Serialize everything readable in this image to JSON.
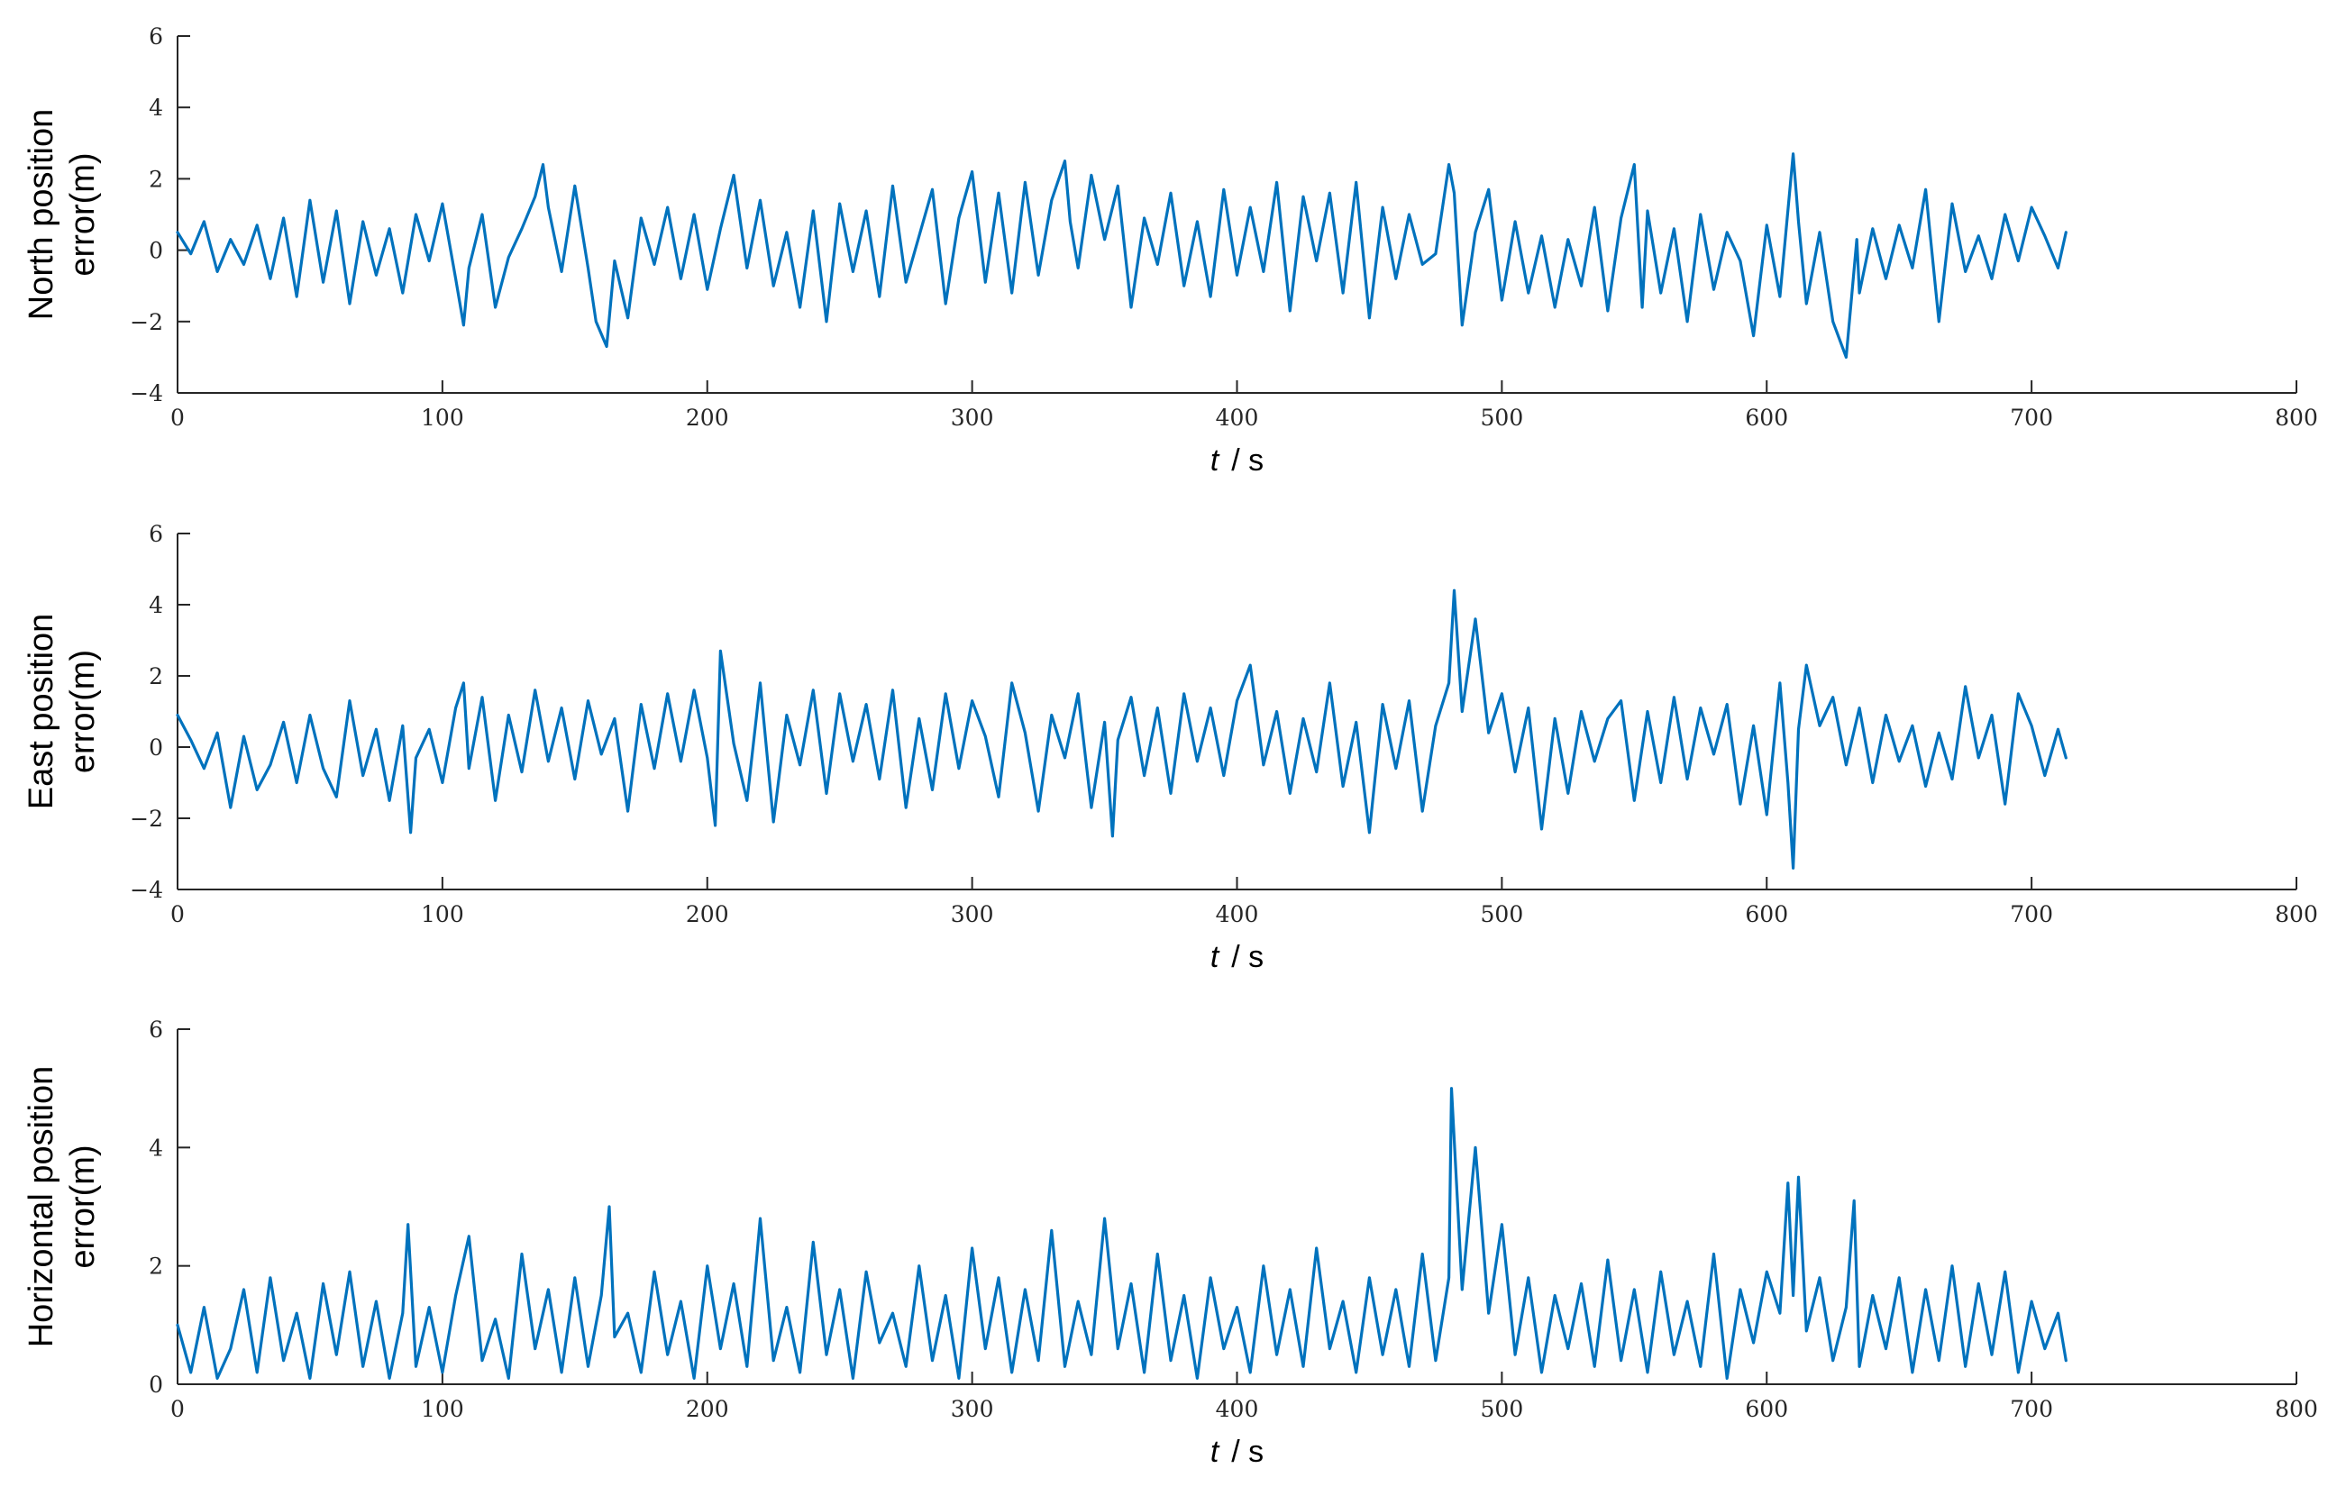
{
  "chart_data": [
    {
      "type": "line",
      "ylabel": [
        "North position",
        "error(m)"
      ],
      "xlabel": {
        "var": "t",
        "unit": "/ s"
      },
      "xlim": [
        0,
        800
      ],
      "ylim": [
        -4,
        6
      ],
      "xticks": [
        0,
        100,
        200,
        300,
        400,
        500,
        600,
        700,
        800
      ],
      "yticks": [
        -4,
        -2,
        0,
        2,
        4,
        6
      ],
      "grid": false,
      "color": "#0072BD",
      "series": [
        {
          "x": [
            0,
            5,
            10,
            15,
            20,
            25,
            30,
            35,
            40,
            45,
            50,
            55,
            60,
            65,
            70,
            75,
            80,
            85,
            90,
            95,
            100,
            105,
            108,
            110,
            115,
            120,
            125,
            130,
            135,
            138,
            140,
            145,
            150,
            155,
            158,
            162,
            165,
            170,
            175,
            180,
            185,
            190,
            195,
            200,
            205,
            210,
            215,
            220,
            225,
            230,
            235,
            240,
            245,
            250,
            255,
            260,
            265,
            270,
            275,
            280,
            285,
            290,
            295,
            300,
            305,
            310,
            315,
            320,
            325,
            330,
            335,
            337,
            340,
            345,
            350,
            355,
            360,
            365,
            370,
            375,
            380,
            385,
            390,
            395,
            400,
            405,
            410,
            415,
            420,
            425,
            430,
            435,
            440,
            445,
            450,
            455,
            460,
            465,
            470,
            475,
            480,
            482,
            485,
            490,
            495,
            500,
            505,
            510,
            515,
            520,
            525,
            530,
            535,
            540,
            545,
            550,
            553,
            555,
            560,
            565,
            570,
            575,
            580,
            585,
            590,
            595,
            600,
            605,
            610,
            612,
            615,
            620,
            625,
            630,
            634,
            635,
            640,
            645,
            650,
            655,
            660,
            665,
            670,
            675,
            680,
            685,
            690,
            695,
            700,
            705,
            710,
            713
          ],
          "y": [
            0.5,
            -0.1,
            0.8,
            -0.6,
            0.3,
            -0.4,
            0.7,
            -0.8,
            0.9,
            -1.3,
            1.4,
            -0.9,
            1.1,
            -1.5,
            0.8,
            -0.7,
            0.6,
            -1.2,
            1.0,
            -0.3,
            1.3,
            -0.8,
            -2.1,
            -0.5,
            1.0,
            -1.6,
            -0.2,
            0.6,
            1.5,
            2.4,
            1.2,
            -0.6,
            1.8,
            -0.5,
            -2.0,
            -2.7,
            -0.3,
            -1.9,
            0.9,
            -0.4,
            1.2,
            -0.8,
            1.0,
            -1.1,
            0.6,
            2.1,
            -0.5,
            1.4,
            -1.0,
            0.5,
            -1.6,
            1.1,
            -2.0,
            1.3,
            -0.6,
            1.1,
            -1.3,
            1.8,
            -0.9,
            0.4,
            1.7,
            -1.5,
            0.9,
            2.2,
            -0.9,
            1.6,
            -1.2,
            1.9,
            -0.7,
            1.4,
            2.5,
            0.8,
            -0.5,
            2.1,
            0.3,
            1.8,
            -1.6,
            0.9,
            -0.4,
            1.6,
            -1.0,
            0.8,
            -1.3,
            1.7,
            -0.7,
            1.2,
            -0.6,
            1.9,
            -1.7,
            1.5,
            -0.3,
            1.6,
            -1.2,
            1.9,
            -1.9,
            1.2,
            -0.8,
            1.0,
            -0.4,
            -0.1,
            2.4,
            1.6,
            -2.1,
            0.5,
            1.7,
            -1.4,
            0.8,
            -1.2,
            0.4,
            -1.6,
            0.3,
            -1.0,
            1.2,
            -1.7,
            0.9,
            2.4,
            -1.6,
            1.1,
            -1.2,
            0.6,
            -2.0,
            1.0,
            -1.1,
            0.5,
            -0.3,
            -2.4,
            0.7,
            -1.3,
            2.7,
            0.8,
            -1.5,
            0.5,
            -2.0,
            -3.0,
            0.3,
            -1.2,
            0.6,
            -0.8,
            0.7,
            -0.5,
            1.7,
            -2.0,
            1.3,
            -0.6,
            0.4,
            -0.8,
            1.0,
            -0.3,
            1.2,
            0.4,
            -0.5,
            0.5
          ]
        }
      ]
    },
    {
      "type": "line",
      "ylabel": [
        "East position",
        "error(m)"
      ],
      "xlabel": {
        "var": "t",
        "unit": "/ s"
      },
      "xlim": [
        0,
        800
      ],
      "ylim": [
        -4,
        6
      ],
      "xticks": [
        0,
        100,
        200,
        300,
        400,
        500,
        600,
        700,
        800
      ],
      "yticks": [
        -4,
        -2,
        0,
        2,
        4,
        6
      ],
      "grid": false,
      "color": "#0072BD",
      "series": [
        {
          "x": [
            0,
            5,
            10,
            15,
            20,
            25,
            30,
            35,
            40,
            45,
            50,
            55,
            60,
            65,
            70,
            75,
            80,
            85,
            88,
            90,
            95,
            100,
            105,
            108,
            110,
            115,
            120,
            125,
            130,
            135,
            140,
            145,
            150,
            155,
            160,
            165,
            170,
            175,
            180,
            185,
            190,
            195,
            200,
            203,
            205,
            210,
            215,
            220,
            225,
            230,
            235,
            240,
            245,
            250,
            255,
            260,
            265,
            270,
            275,
            280,
            285,
            290,
            295,
            300,
            305,
            310,
            315,
            320,
            325,
            330,
            335,
            340,
            345,
            350,
            353,
            355,
            360,
            365,
            370,
            375,
            380,
            385,
            390,
            395,
            400,
            405,
            410,
            415,
            420,
            425,
            430,
            435,
            440,
            445,
            450,
            455,
            460,
            465,
            470,
            475,
            480,
            482,
            485,
            490,
            495,
            500,
            505,
            510,
            515,
            520,
            525,
            530,
            535,
            540,
            545,
            550,
            555,
            560,
            565,
            570,
            575,
            580,
            585,
            590,
            595,
            600,
            605,
            608,
            610,
            612,
            615,
            620,
            625,
            630,
            635,
            640,
            645,
            650,
            655,
            660,
            665,
            670,
            675,
            680,
            685,
            690,
            695,
            700,
            705,
            710,
            713
          ],
          "y": [
            0.9,
            0.2,
            -0.6,
            0.4,
            -1.7,
            0.3,
            -1.2,
            -0.5,
            0.7,
            -1.0,
            0.9,
            -0.6,
            -1.4,
            1.3,
            -0.8,
            0.5,
            -1.5,
            0.6,
            -2.4,
            -0.3,
            0.5,
            -1.0,
            1.1,
            1.8,
            -0.6,
            1.4,
            -1.5,
            0.9,
            -0.7,
            1.6,
            -0.4,
            1.1,
            -0.9,
            1.3,
            -0.2,
            0.8,
            -1.8,
            1.2,
            -0.6,
            1.5,
            -0.4,
            1.6,
            -0.3,
            -2.2,
            2.7,
            0.1,
            -1.5,
            1.8,
            -2.1,
            0.9,
            -0.5,
            1.6,
            -1.3,
            1.5,
            -0.4,
            1.2,
            -0.9,
            1.6,
            -1.7,
            0.8,
            -1.2,
            1.5,
            -0.6,
            1.3,
            0.3,
            -1.4,
            1.8,
            0.4,
            -1.8,
            0.9,
            -0.3,
            1.5,
            -1.7,
            0.7,
            -2.5,
            0.2,
            1.4,
            -0.8,
            1.1,
            -1.3,
            1.5,
            -0.4,
            1.1,
            -0.8,
            1.3,
            2.3,
            -0.5,
            1.0,
            -1.3,
            0.8,
            -0.7,
            1.8,
            -1.1,
            0.7,
            -2.4,
            1.2,
            -0.6,
            1.3,
            -1.8,
            0.6,
            1.8,
            4.4,
            1.0,
            3.6,
            0.4,
            1.5,
            -0.7,
            1.1,
            -2.3,
            0.8,
            -1.3,
            1.0,
            -0.4,
            0.8,
            1.3,
            -1.5,
            1.0,
            -1.0,
            1.4,
            -0.9,
            1.1,
            -0.2,
            1.2,
            -1.6,
            0.6,
            -1.9,
            1.8,
            -1.0,
            -3.4,
            0.5,
            2.3,
            0.6,
            1.4,
            -0.5,
            1.1,
            -1.0,
            0.9,
            -0.4,
            0.6,
            -1.1,
            0.4,
            -0.9,
            1.7,
            -0.3,
            0.9,
            -1.6,
            1.5,
            0.6,
            -0.8,
            0.5,
            -0.3
          ]
        }
      ]
    },
    {
      "type": "line",
      "ylabel": [
        "Horizontal position",
        "error(m)"
      ],
      "xlabel": {
        "var": "t",
        "unit": "/ s"
      },
      "xlim": [
        0,
        800
      ],
      "ylim": [
        0,
        6
      ],
      "xticks": [
        0,
        100,
        200,
        300,
        400,
        500,
        600,
        700,
        800
      ],
      "yticks": [
        0,
        2,
        4,
        6
      ],
      "grid": false,
      "color": "#0072BD",
      "series": [
        {
          "x": [
            0,
            5,
            10,
            15,
            20,
            25,
            30,
            35,
            40,
            45,
            50,
            55,
            60,
            65,
            70,
            75,
            80,
            85,
            87,
            90,
            95,
            100,
            105,
            110,
            115,
            120,
            125,
            130,
            135,
            140,
            145,
            150,
            155,
            160,
            163,
            165,
            170,
            175,
            180,
            185,
            190,
            195,
            200,
            205,
            210,
            215,
            220,
            225,
            230,
            235,
            240,
            245,
            250,
            255,
            260,
            265,
            270,
            275,
            280,
            285,
            290,
            295,
            300,
            305,
            310,
            315,
            320,
            325,
            330,
            335,
            340,
            345,
            350,
            355,
            360,
            365,
            370,
            375,
            380,
            385,
            390,
            395,
            400,
            405,
            410,
            415,
            420,
            425,
            430,
            435,
            440,
            445,
            450,
            455,
            460,
            465,
            470,
            475,
            480,
            481,
            485,
            490,
            495,
            500,
            505,
            510,
            515,
            520,
            525,
            530,
            535,
            540,
            545,
            550,
            555,
            560,
            565,
            570,
            575,
            580,
            585,
            590,
            595,
            600,
            605,
            608,
            610,
            612,
            615,
            620,
            625,
            630,
            633,
            635,
            640,
            645,
            650,
            655,
            660,
            665,
            670,
            675,
            680,
            685,
            690,
            695,
            700,
            705,
            710,
            713
          ],
          "y": [
            1.0,
            0.2,
            1.3,
            0.1,
            0.6,
            1.6,
            0.2,
            1.8,
            0.4,
            1.2,
            0.1,
            1.7,
            0.5,
            1.9,
            0.3,
            1.4,
            0.1,
            1.2,
            2.7,
            0.3,
            1.3,
            0.2,
            1.5,
            2.5,
            0.4,
            1.1,
            0.1,
            2.2,
            0.6,
            1.6,
            0.2,
            1.8,
            0.3,
            1.5,
            3.0,
            0.8,
            1.2,
            0.2,
            1.9,
            0.5,
            1.4,
            0.1,
            2.0,
            0.6,
            1.7,
            0.3,
            2.8,
            0.4,
            1.3,
            0.2,
            2.4,
            0.5,
            1.6,
            0.1,
            1.9,
            0.7,
            1.2,
            0.3,
            2.0,
            0.4,
            1.5,
            0.1,
            2.3,
            0.6,
            1.8,
            0.2,
            1.6,
            0.4,
            2.6,
            0.3,
            1.4,
            0.5,
            2.8,
            0.6,
            1.7,
            0.2,
            2.2,
            0.4,
            1.5,
            0.1,
            1.8,
            0.6,
            1.3,
            0.2,
            2.0,
            0.5,
            1.6,
            0.3,
            2.3,
            0.6,
            1.4,
            0.2,
            1.8,
            0.5,
            1.6,
            0.3,
            2.2,
            0.4,
            1.8,
            5.0,
            1.6,
            4.0,
            1.2,
            2.7,
            0.5,
            1.8,
            0.2,
            1.5,
            0.6,
            1.7,
            0.3,
            2.1,
            0.4,
            1.6,
            0.2,
            1.9,
            0.5,
            1.4,
            0.3,
            2.2,
            0.1,
            1.6,
            0.7,
            1.9,
            1.2,
            3.4,
            1.5,
            3.5,
            0.9,
            1.8,
            0.4,
            1.3,
            3.1,
            0.3,
            1.5,
            0.6,
            1.8,
            0.2,
            1.6,
            0.4,
            2.0,
            0.3,
            1.7,
            0.5,
            1.9,
            0.2,
            1.4,
            0.6,
            1.2,
            0.4
          ]
        }
      ]
    }
  ]
}
